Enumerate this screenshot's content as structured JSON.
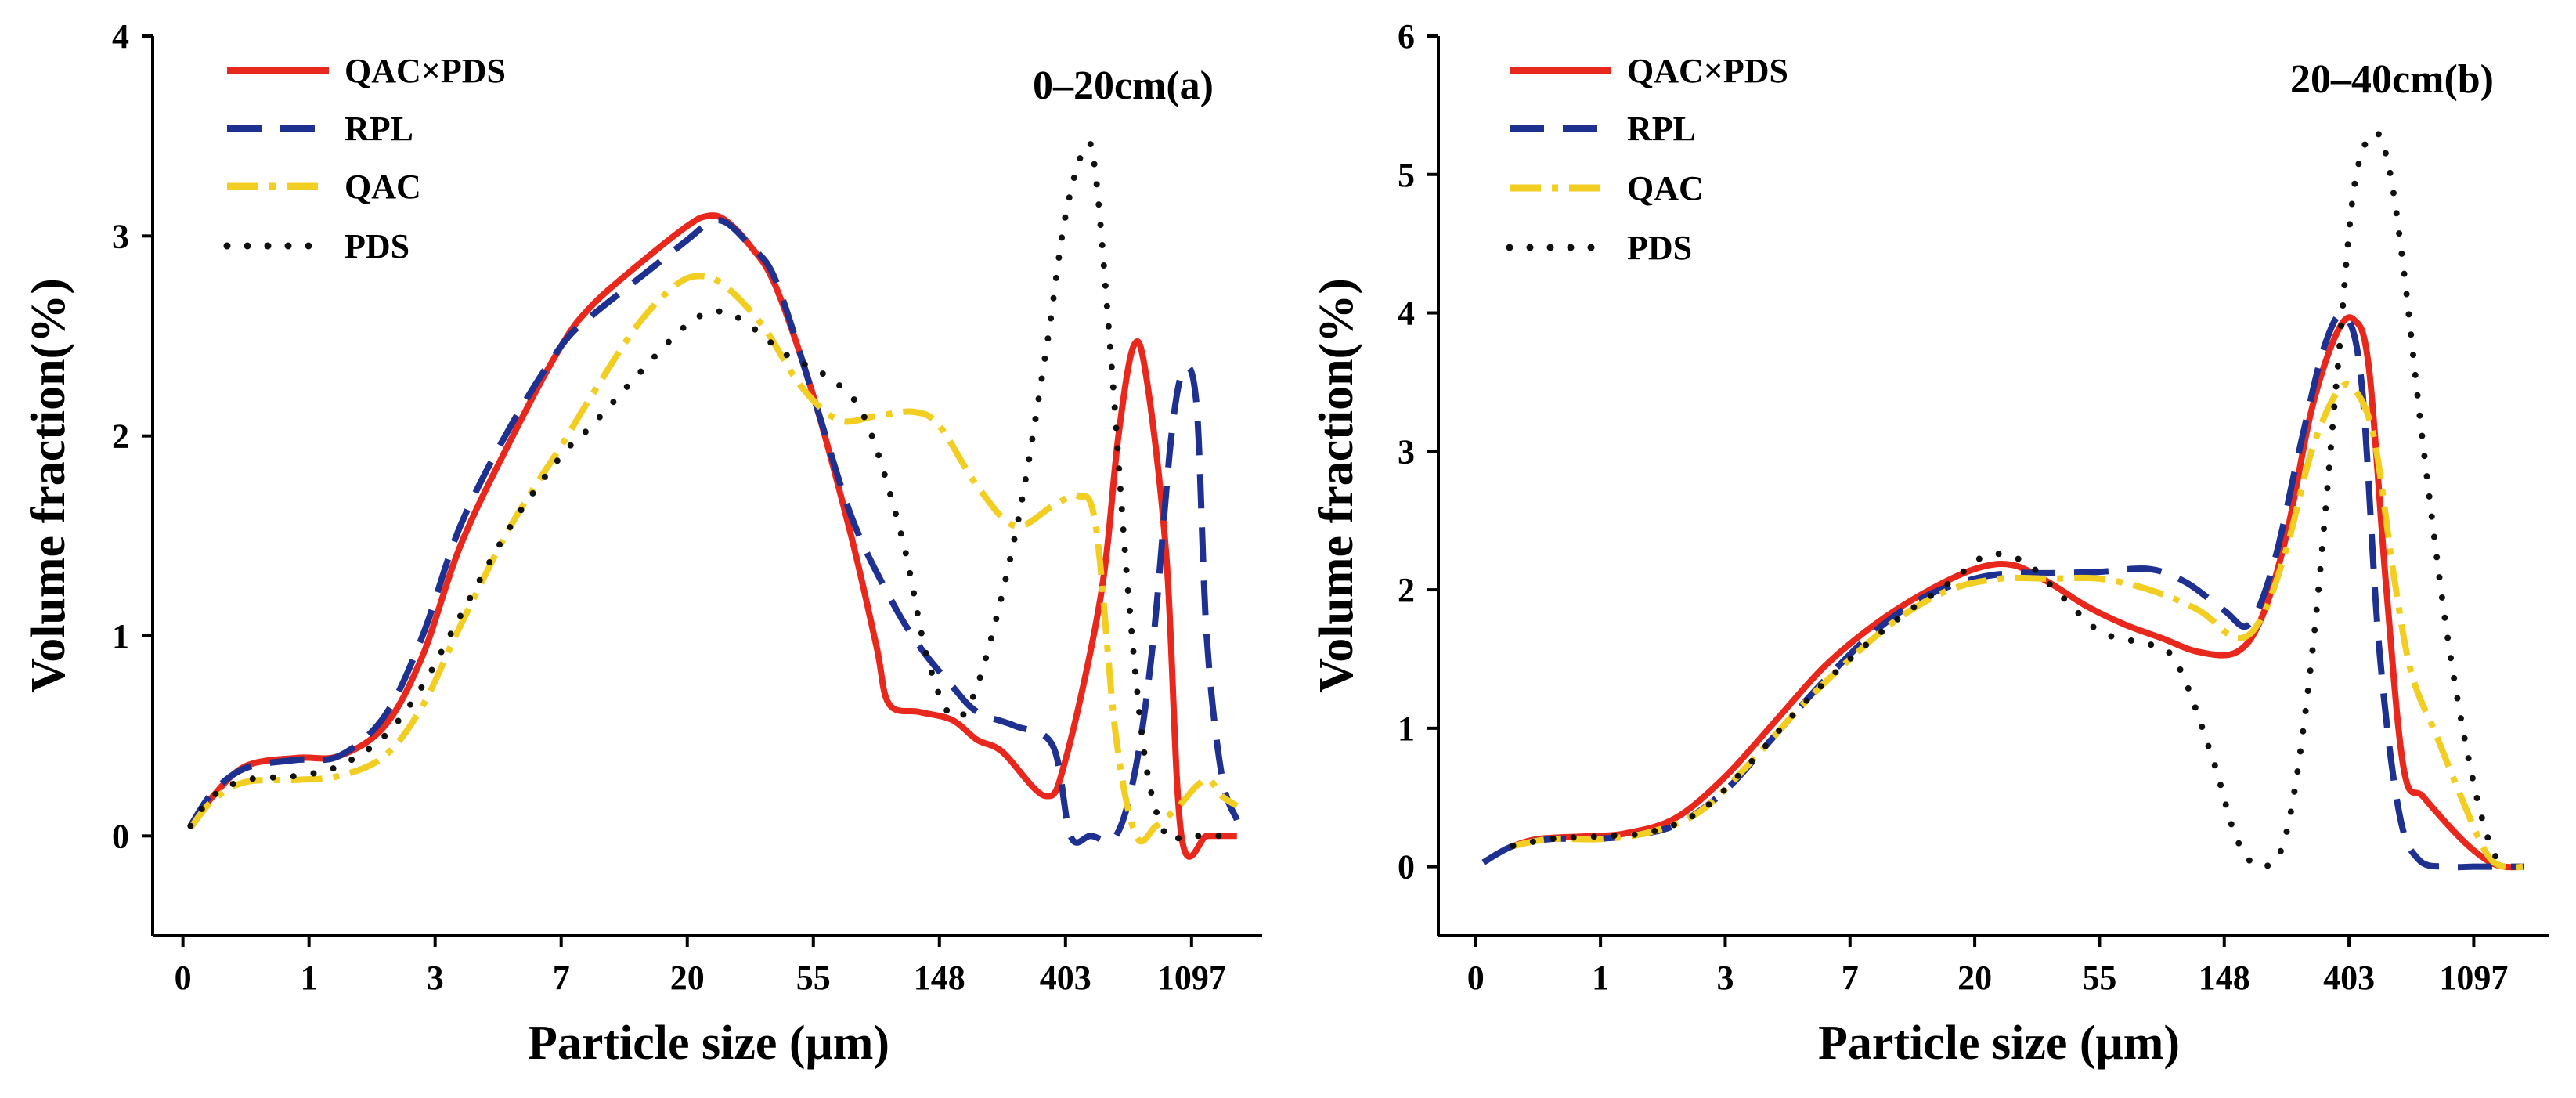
{
  "figure": {
    "panels": 2,
    "legend_position": "top-left"
  },
  "chart_data": [
    {
      "type": "line",
      "title": "0–20cm(a)",
      "xlabel": "Particle size (μm)",
      "ylabel": "Volume fraction(%)",
      "x_scale": "index",
      "xlim": [
        -0.12,
        4.28
      ],
      "ylim": [
        -0.5,
        4
      ],
      "yticks": [
        0,
        1,
        2,
        3,
        4
      ],
      "xticks": [
        {
          "pos": 0,
          "label": "0"
        },
        {
          "pos": 0.5,
          "label": "1"
        },
        {
          "pos": 1,
          "label": "3"
        },
        {
          "pos": 1.5,
          "label": "7"
        },
        {
          "pos": 2,
          "label": "20"
        },
        {
          "pos": 2.5,
          "label": "55"
        },
        {
          "pos": 3,
          "label": "148"
        },
        {
          "pos": 3.5,
          "label": "403"
        },
        {
          "pos": 4,
          "label": "1097"
        }
      ],
      "series": [
        {
          "name": "QAC×PDS",
          "color": "#e8281c",
          "dash": "solid",
          "x": [
            0.03,
            0.12,
            0.25,
            0.45,
            0.62,
            0.8,
            0.95,
            1.1,
            1.3,
            1.5,
            1.62,
            1.8,
            2.0,
            2.08,
            2.15,
            2.25,
            2.35,
            2.5,
            2.65,
            2.75,
            2.8,
            2.92,
            3.05,
            3.15,
            3.25,
            3.42,
            3.5,
            3.64,
            3.71,
            3.77,
            3.82,
            3.9,
            3.96,
            4.06,
            4.12,
            4.18
          ],
          "values": [
            0.05,
            0.2,
            0.35,
            0.39,
            0.4,
            0.55,
            0.9,
            1.45,
            1.98,
            2.45,
            2.65,
            2.85,
            3.05,
            3.1,
            3.08,
            2.95,
            2.75,
            2.2,
            1.5,
            0.95,
            0.66,
            0.62,
            0.58,
            0.48,
            0.42,
            0.2,
            0.38,
            1.2,
            2.0,
            2.45,
            2.3,
            1.4,
            0.0,
            0.0,
            0.0,
            0.0
          ]
        },
        {
          "name": "RPL",
          "color": "#1e3090",
          "dash": "dashed",
          "x": [
            0.03,
            0.12,
            0.25,
            0.45,
            0.62,
            0.8,
            0.95,
            1.1,
            1.3,
            1.5,
            1.62,
            1.8,
            2.0,
            2.08,
            2.15,
            2.25,
            2.35,
            2.5,
            2.65,
            2.8,
            2.92,
            3.05,
            3.15,
            3.3,
            3.45,
            3.52,
            3.6,
            3.7,
            3.78,
            3.85,
            3.92,
            3.97,
            4.02,
            4.06,
            4.12,
            4.18
          ],
          "values": [
            0.05,
            0.22,
            0.34,
            0.38,
            0.4,
            0.6,
            1.0,
            1.55,
            2.05,
            2.45,
            2.6,
            2.78,
            2.98,
            3.06,
            3.07,
            2.95,
            2.78,
            2.2,
            1.6,
            1.2,
            0.95,
            0.75,
            0.62,
            0.55,
            0.45,
            0.0,
            0.0,
            0.0,
            0.35,
            1.0,
            2.0,
            2.33,
            2.15,
            1.0,
            0.3,
            0.08
          ]
        },
        {
          "name": "QAC",
          "color": "#f2cd22",
          "dash": "dashdot",
          "x": [
            0.03,
            0.12,
            0.25,
            0.45,
            0.62,
            0.8,
            0.95,
            1.1,
            1.3,
            1.5,
            1.62,
            1.8,
            1.95,
            2.05,
            2.15,
            2.3,
            2.45,
            2.6,
            2.75,
            2.9,
            3.0,
            3.15,
            3.3,
            3.45,
            3.55,
            3.62,
            3.7,
            3.78,
            3.86,
            3.95,
            4.02,
            4.07,
            4.12,
            4.18
          ],
          "values": [
            0.04,
            0.18,
            0.27,
            0.28,
            0.3,
            0.4,
            0.65,
            1.05,
            1.55,
            1.95,
            2.2,
            2.55,
            2.75,
            2.8,
            2.75,
            2.55,
            2.25,
            2.08,
            2.1,
            2.12,
            2.05,
            1.75,
            1.55,
            1.65,
            1.7,
            1.55,
            0.5,
            0.0,
            0.05,
            0.15,
            0.25,
            0.28,
            0.2,
            0.15
          ]
        },
        {
          "name": "PDS",
          "color": "#111111",
          "dash": "dotted",
          "x": [
            0.03,
            0.12,
            0.25,
            0.45,
            0.62,
            0.8,
            0.95,
            1.1,
            1.3,
            1.5,
            1.62,
            1.8,
            1.95,
            2.05,
            2.15,
            2.25,
            2.4,
            2.55,
            2.7,
            2.85,
            2.95,
            3.05,
            3.15,
            3.3,
            3.42,
            3.5,
            3.58,
            3.62,
            3.68,
            3.75,
            3.82,
            3.9,
            3.97,
            4.05,
            4.12,
            4.18
          ],
          "values": [
            0.05,
            0.2,
            0.28,
            0.3,
            0.35,
            0.5,
            0.75,
            1.1,
            1.55,
            1.9,
            2.05,
            2.3,
            2.5,
            2.6,
            2.62,
            2.55,
            2.4,
            2.3,
            2.1,
            1.5,
            0.9,
            0.6,
            0.75,
            1.5,
            2.4,
            3.1,
            3.45,
            3.3,
            2.4,
            1.2,
            0.35,
            0.0,
            0.0,
            0.0,
            0.0,
            0.0
          ]
        }
      ]
    },
    {
      "type": "line",
      "title": "20–40cm(b)",
      "xlabel": "Particle size (μm)",
      "ylabel": "Volume fraction(%)",
      "x_scale": "index",
      "xlim": [
        -0.15,
        4.3
      ],
      "ylim": [
        -0.5,
        6
      ],
      "yticks": [
        0,
        1,
        2,
        3,
        4,
        5,
        6
      ],
      "xticks": [
        {
          "pos": 0,
          "label": "0"
        },
        {
          "pos": 0.5,
          "label": "1"
        },
        {
          "pos": 1,
          "label": "3"
        },
        {
          "pos": 1.5,
          "label": "7"
        },
        {
          "pos": 2,
          "label": "20"
        },
        {
          "pos": 2.5,
          "label": "55"
        },
        {
          "pos": 3,
          "label": "148"
        },
        {
          "pos": 3.5,
          "label": "403"
        },
        {
          "pos": 4,
          "label": "1097"
        }
      ],
      "series": [
        {
          "name": "QAC×PDS",
          "color": "#e8281c",
          "dash": "solid",
          "x": [
            0.15,
            0.25,
            0.45,
            0.6,
            0.8,
            1.0,
            1.2,
            1.4,
            1.6,
            1.8,
            2.0,
            2.15,
            2.3,
            2.45,
            2.6,
            2.75,
            2.9,
            3.05,
            3.15,
            3.25,
            3.35,
            3.45,
            3.52,
            3.58,
            3.65,
            3.72,
            3.8,
            3.95,
            4.05,
            4.12,
            4.2
          ],
          "values": [
            0.15,
            0.2,
            0.22,
            0.24,
            0.35,
            0.65,
            1.05,
            1.45,
            1.75,
            1.98,
            2.15,
            2.18,
            2.05,
            1.88,
            1.75,
            1.65,
            1.55,
            1.55,
            1.8,
            2.4,
            3.3,
            3.85,
            3.95,
            3.6,
            2.0,
            0.7,
            0.5,
            0.2,
            0.05,
            0.0,
            0.0
          ]
        },
        {
          "name": "RPL",
          "color": "#1e3090",
          "dash": "dashed",
          "x": [
            0.03,
            0.15,
            0.3,
            0.45,
            0.6,
            0.8,
            1.0,
            1.2,
            1.4,
            1.6,
            1.8,
            2.0,
            2.15,
            2.3,
            2.5,
            2.7,
            2.85,
            3.0,
            3.1,
            3.2,
            3.3,
            3.4,
            3.48,
            3.55,
            3.62,
            3.7,
            3.78,
            3.9,
            4.0,
            4.1,
            4.2
          ],
          "values": [
            0.03,
            0.15,
            0.2,
            0.2,
            0.22,
            0.3,
            0.55,
            0.95,
            1.35,
            1.7,
            1.95,
            2.08,
            2.12,
            2.12,
            2.13,
            2.15,
            2.05,
            1.85,
            1.75,
            2.2,
            3.0,
            3.75,
            3.98,
            3.5,
            1.6,
            0.4,
            0.05,
            0.0,
            0.0,
            0.0,
            0.0
          ]
        },
        {
          "name": "QAC",
          "color": "#f2cd22",
          "dash": "dashdot",
          "x": [
            0.15,
            0.3,
            0.5,
            0.7,
            0.9,
            1.1,
            1.3,
            1.5,
            1.7,
            1.9,
            2.1,
            2.3,
            2.5,
            2.7,
            2.9,
            3.05,
            3.15,
            3.25,
            3.35,
            3.45,
            3.52,
            3.6,
            3.68,
            3.75,
            3.85,
            3.95,
            4.05,
            4.12,
            4.2
          ],
          "values": [
            0.15,
            0.2,
            0.2,
            0.25,
            0.4,
            0.75,
            1.15,
            1.5,
            1.8,
            2.0,
            2.08,
            2.08,
            2.08,
            2.0,
            1.85,
            1.65,
            1.8,
            2.3,
            3.0,
            3.42,
            3.45,
            3.1,
            2.1,
            1.4,
            0.95,
            0.5,
            0.1,
            0.0,
            0.0
          ]
        },
        {
          "name": "PDS",
          "color": "#111111",
          "dash": "dotted",
          "x": [
            0.15,
            0.3,
            0.5,
            0.7,
            0.9,
            1.1,
            1.3,
            1.5,
            1.7,
            1.9,
            2.05,
            2.2,
            2.35,
            2.5,
            2.65,
            2.8,
            2.95,
            3.05,
            3.15,
            3.25,
            3.35,
            3.45,
            3.52,
            3.6,
            3.66,
            3.72,
            3.8,
            3.9,
            4.0,
            4.08,
            4.15
          ],
          "values": [
            0.15,
            0.2,
            0.22,
            0.25,
            0.4,
            0.75,
            1.15,
            1.5,
            1.8,
            2.05,
            2.25,
            2.2,
            1.95,
            1.7,
            1.62,
            1.5,
            0.8,
            0.2,
            0.0,
            0.25,
            1.5,
            3.5,
            4.9,
            5.3,
            5.05,
            4.3,
            3.0,
            1.6,
            0.6,
            0.1,
            0.0
          ]
        }
      ]
    }
  ]
}
